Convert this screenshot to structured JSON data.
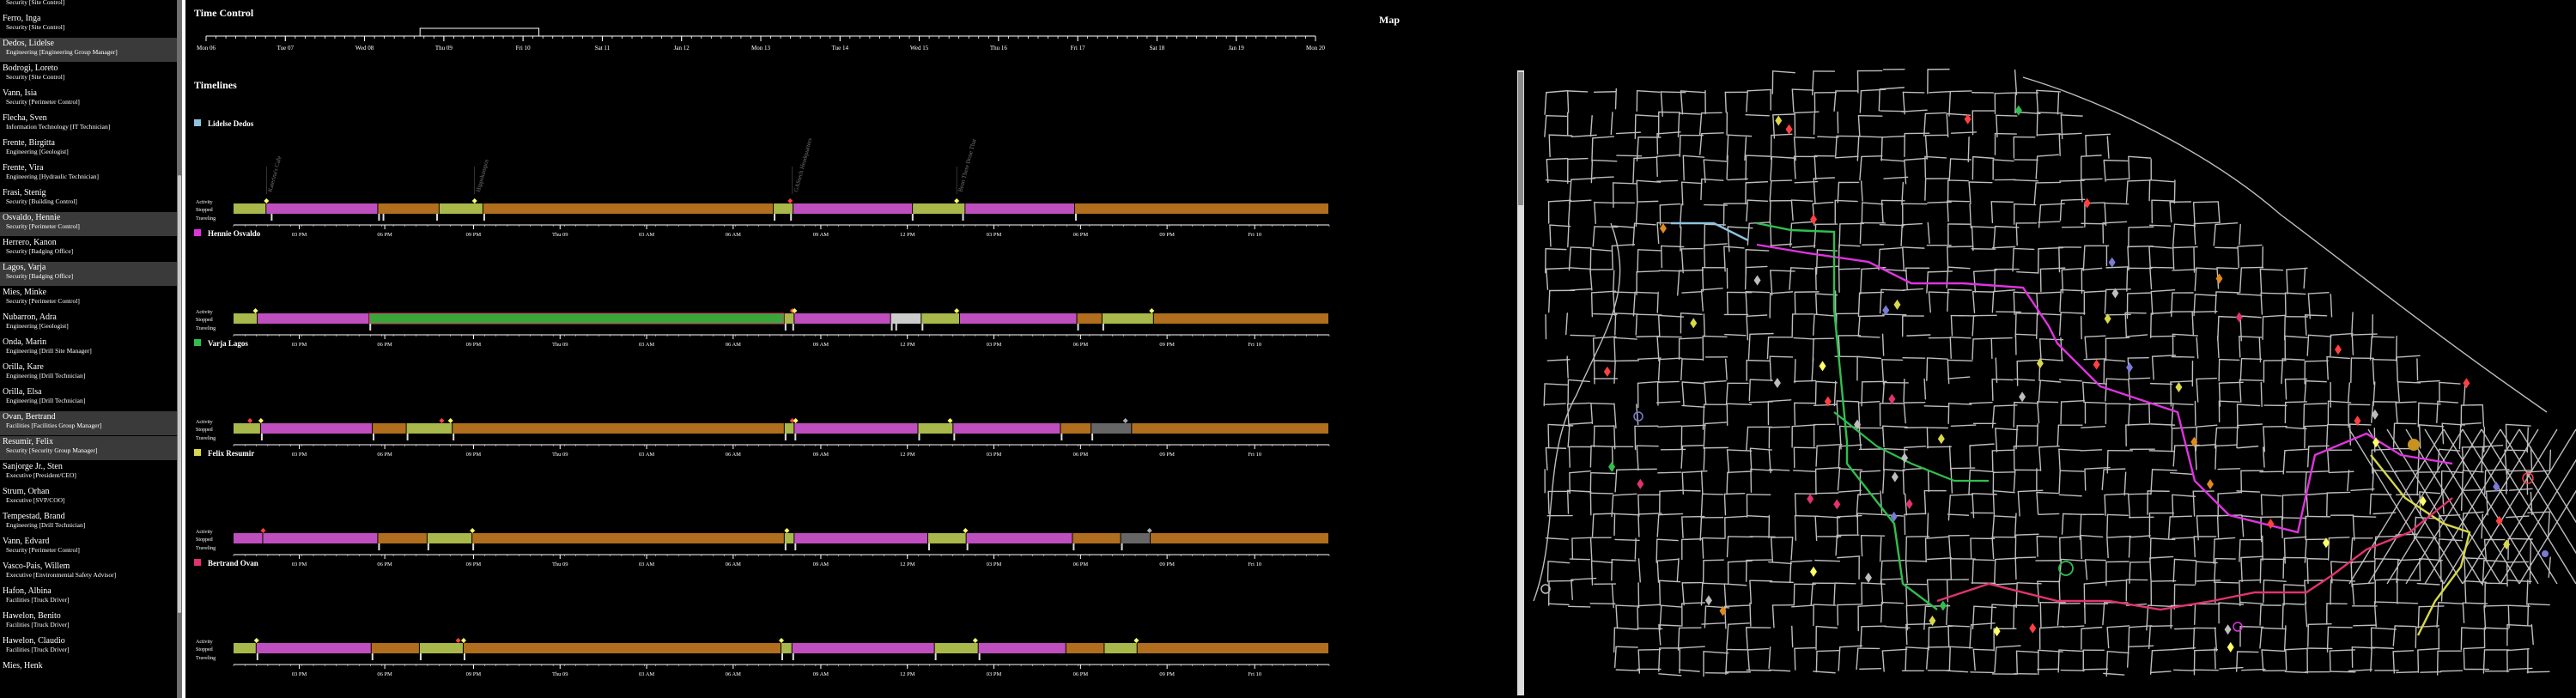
{
  "sidebar": {
    "people": [
      {
        "name": "",
        "role": "Security [Site Control]",
        "selected": false
      },
      {
        "name": "Ferro, Inga",
        "role": "Security [Site Control]",
        "selected": false
      },
      {
        "name": "Dedos, Lidelse",
        "role": "Engineering [Engineering Group Manager]",
        "selected": true
      },
      {
        "name": "Bodrogi, Loreto",
        "role": "Security [Site Control]",
        "selected": false
      },
      {
        "name": "Vann, Isia",
        "role": "Security [Perimeter Control]",
        "selected": false
      },
      {
        "name": "Flecha, Sven",
        "role": "Information Technology [IT Technician]",
        "selected": false
      },
      {
        "name": "Frente, Birgitta",
        "role": "Engineering [Geologist]",
        "selected": false
      },
      {
        "name": "Frente, Vira",
        "role": "Engineering [Hydraulic Technician]",
        "selected": false
      },
      {
        "name": "Frasi, Stenig",
        "role": "Security [Building Control]",
        "selected": false
      },
      {
        "name": "Osvaldo, Hennie",
        "role": "Security [Perimeter Control]",
        "selected": true
      },
      {
        "name": "Herrero, Kanon",
        "role": "Security [Badging Office]",
        "selected": false
      },
      {
        "name": "Lagos, Varja",
        "role": "Security [Badging Office]",
        "selected": true
      },
      {
        "name": "Mies, Minke",
        "role": "Security [Perimeter Control]",
        "selected": false
      },
      {
        "name": "Nubarron, Adra",
        "role": "Engineering [Geologist]",
        "selected": false
      },
      {
        "name": "Onda, Marin",
        "role": "Engineering [Drill Site Manager]",
        "selected": false
      },
      {
        "name": "Orilla, Kare",
        "role": "Engineering [Drill Technician]",
        "selected": false
      },
      {
        "name": "Orilla, Elsa",
        "role": "Engineering [Drill Technician]",
        "selected": false
      },
      {
        "name": "Ovan, Bertrand",
        "role": "Facilities [Facilities Group Manager]",
        "selected": true
      },
      {
        "name": "Resumir, Felix",
        "role": "Security [Security Group Manager]",
        "selected": true
      },
      {
        "name": "Sanjorge Jr., Sten",
        "role": "Executive [President/CEO]",
        "selected": false
      },
      {
        "name": "Strum, Orhan",
        "role": "Executive [SVP/COO]",
        "selected": false
      },
      {
        "name": "Tempestad, Brand",
        "role": "Engineering [Drill Technician]",
        "selected": false
      },
      {
        "name": "Vann, Edvard",
        "role": "Security [Perimeter Control]",
        "selected": false
      },
      {
        "name": "Vasco-Pais, Willem",
        "role": "Executive [Environmental Safety Advisor]",
        "selected": false
      },
      {
        "name": "Hafon, Albina",
        "role": "Facilities [Truck Driver]",
        "selected": false
      },
      {
        "name": "Hawelon, Benito",
        "role": "Facilities [Truck Driver]",
        "selected": false
      },
      {
        "name": "Hawelon, Claudio",
        "role": "Facilities [Truck Driver]",
        "selected": false
      },
      {
        "name": "Mies, Henk",
        "role": "",
        "selected": false
      }
    ]
  },
  "time_control": {
    "title": "Time Control",
    "ticks": [
      "Mon 06",
      "Tue 07",
      "Wed 08",
      "Thu 09",
      "Fri 10",
      "Sat 11",
      "Jan 12",
      "Mon 13",
      "Tue 14",
      "Wed 15",
      "Thu 16",
      "Fri 17",
      "Sat 18",
      "Jan 19",
      "Mon 20"
    ],
    "brush": {
      "start": 2.7,
      "end": 4.2
    }
  },
  "timelines": {
    "title": "Timelines",
    "row_labels": {
      "activity": "Activity",
      "stopped": "Stopped",
      "traveling": "Traveling"
    },
    "axis_ticks": [
      {
        "label": "03 PM",
        "pos": 0.06
      },
      {
        "label": "06 PM",
        "pos": 0.138
      },
      {
        "label": "09 PM",
        "pos": 0.219
      },
      {
        "label": "Thu 09",
        "pos": 0.298
      },
      {
        "label": "03 AM",
        "pos": 0.377
      },
      {
        "label": "06 AM",
        "pos": 0.456
      },
      {
        "label": "09 AM",
        "pos": 0.536
      },
      {
        "label": "12 PM",
        "pos": 0.615
      },
      {
        "label": "03 PM",
        "pos": 0.694
      },
      {
        "label": "06 PM",
        "pos": 0.773
      },
      {
        "label": "09 PM",
        "pos": 0.852
      },
      {
        "label": "Fri 10",
        "pos": 0.932
      }
    ],
    "people": [
      {
        "name": "Lidelse Dedos",
        "color": "#8fc3e0",
        "annotations": [
          {
            "text": "Katerina's Cafe",
            "pos": 0.03
          },
          {
            "text": "Hippokampos",
            "pos": 0.22
          },
          {
            "text": "GAStech Headquarters",
            "pos": 0.51
          },
          {
            "text": "Bean There Done That",
            "pos": 0.66
          }
        ],
        "activity": [
          {
            "pos": 0.03,
            "color": "#ffff66"
          },
          {
            "pos": 0.22,
            "color": "#ffff66"
          },
          {
            "pos": 0.508,
            "color": "#ff4040"
          },
          {
            "pos": 0.66,
            "color": "#ffff66"
          }
        ],
        "segments": [
          {
            "start": 0.0,
            "end": 0.03,
            "color": "#a9b84a"
          },
          {
            "start": 0.03,
            "end": 0.132,
            "color": "#bf4fbf"
          },
          {
            "start": 0.132,
            "end": 0.188,
            "color": "#b06e1e"
          },
          {
            "start": 0.188,
            "end": 0.228,
            "color": "#a9b84a"
          },
          {
            "start": 0.228,
            "end": 0.493,
            "color": "#b06e1e"
          },
          {
            "start": 0.493,
            "end": 0.511,
            "color": "#a9b84a"
          },
          {
            "start": 0.511,
            "end": 0.62,
            "color": "#bf4fbf"
          },
          {
            "start": 0.62,
            "end": 0.668,
            "color": "#a9b84a"
          },
          {
            "start": 0.668,
            "end": 0.768,
            "color": "#bf4fbf"
          },
          {
            "start": 0.768,
            "end": 1.0,
            "color": "#b06e1e"
          }
        ],
        "travel": [
          0.034,
          0.132,
          0.136,
          0.185,
          0.228,
          0.493,
          0.508,
          0.619,
          0.665,
          0.768
        ]
      },
      {
        "name": "Hennie Osvaldo",
        "color": "#e033e0",
        "annotations": [],
        "activity": [
          {
            "pos": 0.02,
            "color": "#ffff66"
          },
          {
            "pos": 0.51,
            "color": "#ff4040"
          },
          {
            "pos": 0.512,
            "color": "#ffff66"
          },
          {
            "pos": 0.66,
            "color": "#ffff66"
          },
          {
            "pos": 0.838,
            "color": "#ffff66"
          }
        ],
        "segments": [
          {
            "start": 0.0,
            "end": 0.022,
            "color": "#a9b84a"
          },
          {
            "start": 0.022,
            "end": 0.124,
            "color": "#bf4fbf"
          },
          {
            "start": 0.124,
            "end": 0.503,
            "color": "#3aa63a"
          },
          {
            "start": 0.503,
            "end": 0.512,
            "color": "#a9b84a"
          },
          {
            "start": 0.512,
            "end": 0.6,
            "color": "#bf4fbf"
          },
          {
            "start": 0.6,
            "end": 0.628,
            "color": "#cccccc"
          },
          {
            "start": 0.628,
            "end": 0.663,
            "color": "#a9b84a"
          },
          {
            "start": 0.663,
            "end": 0.77,
            "color": "#bf4fbf"
          },
          {
            "start": 0.77,
            "end": 0.793,
            "color": "#b06e1e"
          },
          {
            "start": 0.793,
            "end": 0.84,
            "color": "#a9b84a"
          },
          {
            "start": 0.84,
            "end": 1.0,
            "color": "#b06e1e"
          }
        ],
        "travel": [
          0.124,
          0.503,
          0.51,
          0.6,
          0.604,
          0.628,
          0.77,
          0.793
        ]
      },
      {
        "name": "Varja Lagos",
        "color": "#2fbf4f",
        "annotations": [],
        "activity": [
          {
            "pos": 0.015,
            "color": "#ff4040"
          },
          {
            "pos": 0.025,
            "color": "#ffff66"
          },
          {
            "pos": 0.19,
            "color": "#ff4040"
          },
          {
            "pos": 0.198,
            "color": "#ffff66"
          },
          {
            "pos": 0.51,
            "color": "#ff4040"
          },
          {
            "pos": 0.513,
            "color": "#ffff66"
          },
          {
            "pos": 0.654,
            "color": "#ffff66"
          },
          {
            "pos": 0.814,
            "color": "#aaaaaa"
          }
        ],
        "segments": [
          {
            "start": 0.0,
            "end": 0.025,
            "color": "#a9b84a"
          },
          {
            "start": 0.025,
            "end": 0.127,
            "color": "#bf4fbf"
          },
          {
            "start": 0.127,
            "end": 0.158,
            "color": "#b06e1e"
          },
          {
            "start": 0.158,
            "end": 0.2,
            "color": "#a9b84a"
          },
          {
            "start": 0.2,
            "end": 0.503,
            "color": "#b06e1e"
          },
          {
            "start": 0.503,
            "end": 0.512,
            "color": "#a9b84a"
          },
          {
            "start": 0.512,
            "end": 0.625,
            "color": "#bf4fbf"
          },
          {
            "start": 0.625,
            "end": 0.657,
            "color": "#a9b84a"
          },
          {
            "start": 0.657,
            "end": 0.755,
            "color": "#bf4fbf"
          },
          {
            "start": 0.755,
            "end": 0.783,
            "color": "#b06e1e"
          },
          {
            "start": 0.783,
            "end": 0.82,
            "color": "#666666"
          },
          {
            "start": 0.82,
            "end": 1.0,
            "color": "#b06e1e"
          }
        ],
        "travel": [
          0.025,
          0.127,
          0.158,
          0.2,
          0.503,
          0.512,
          0.625,
          0.657,
          0.755,
          0.783
        ]
      },
      {
        "name": "Felix Resumir",
        "color": "#d8d84a",
        "annotations": [],
        "activity": [
          {
            "pos": 0.027,
            "color": "#ff4040"
          },
          {
            "pos": 0.218,
            "color": "#ffff66"
          },
          {
            "pos": 0.505,
            "color": "#ffff66"
          },
          {
            "pos": 0.668,
            "color": "#ffff66"
          },
          {
            "pos": 0.836,
            "color": "#aaaaaa"
          }
        ],
        "segments": [
          {
            "start": 0.0,
            "end": 0.027,
            "color": "#bf4fbf"
          },
          {
            "start": 0.027,
            "end": 0.132,
            "color": "#bf4fbf"
          },
          {
            "start": 0.132,
            "end": 0.177,
            "color": "#b06e1e"
          },
          {
            "start": 0.177,
            "end": 0.218,
            "color": "#a9b84a"
          },
          {
            "start": 0.218,
            "end": 0.503,
            "color": "#b06e1e"
          },
          {
            "start": 0.503,
            "end": 0.512,
            "color": "#a9b84a"
          },
          {
            "start": 0.512,
            "end": 0.634,
            "color": "#bf4fbf"
          },
          {
            "start": 0.634,
            "end": 0.669,
            "color": "#a9b84a"
          },
          {
            "start": 0.669,
            "end": 0.766,
            "color": "#bf4fbf"
          },
          {
            "start": 0.766,
            "end": 0.81,
            "color": "#b06e1e"
          },
          {
            "start": 0.81,
            "end": 0.837,
            "color": "#666666"
          },
          {
            "start": 0.837,
            "end": 1.0,
            "color": "#b06e1e"
          }
        ],
        "travel": [
          0.132,
          0.177,
          0.218,
          0.503,
          0.512,
          0.634,
          0.669,
          0.766,
          0.81
        ]
      },
      {
        "name": "Bertrand Ovan",
        "color": "#e0336f",
        "annotations": [],
        "activity": [
          {
            "pos": 0.021,
            "color": "#ffff66"
          },
          {
            "pos": 0.205,
            "color": "#ff4040"
          },
          {
            "pos": 0.21,
            "color": "#ffff66"
          },
          {
            "pos": 0.5,
            "color": "#ffff66"
          },
          {
            "pos": 0.677,
            "color": "#ffff66"
          },
          {
            "pos": 0.824,
            "color": "#ffff66"
          }
        ],
        "segments": [
          {
            "start": 0.0,
            "end": 0.021,
            "color": "#a9b84a"
          },
          {
            "start": 0.021,
            "end": 0.126,
            "color": "#bf4fbf"
          },
          {
            "start": 0.126,
            "end": 0.17,
            "color": "#b06e1e"
          },
          {
            "start": 0.17,
            "end": 0.21,
            "color": "#a9b84a"
          },
          {
            "start": 0.21,
            "end": 0.5,
            "color": "#b06e1e"
          },
          {
            "start": 0.5,
            "end": 0.51,
            "color": "#a9b84a"
          },
          {
            "start": 0.51,
            "end": 0.64,
            "color": "#bf4fbf"
          },
          {
            "start": 0.64,
            "end": 0.68,
            "color": "#a9b84a"
          },
          {
            "start": 0.68,
            "end": 0.76,
            "color": "#bf4fbf"
          },
          {
            "start": 0.76,
            "end": 0.795,
            "color": "#b06e1e"
          },
          {
            "start": 0.795,
            "end": 0.825,
            "color": "#a9b84a"
          },
          {
            "start": 0.825,
            "end": 1.0,
            "color": "#b06e1e"
          }
        ],
        "travel": [
          0.021,
          0.126,
          0.17,
          0.21,
          0.5,
          0.51,
          0.64,
          0.68
        ]
      }
    ]
  },
  "map": {
    "title": "Map",
    "paths": [
      {
        "color": "#e033e0",
        "label": "Hennie Osvaldo"
      },
      {
        "color": "#2fbf4f",
        "label": "Varja Lagos"
      },
      {
        "color": "#d8d84a",
        "label": "Felix Resumir"
      },
      {
        "color": "#e0336f",
        "label": "Bertrand Ovan"
      },
      {
        "color": "#8fc3e0",
        "label": "Lidelse Dedos"
      }
    ]
  }
}
